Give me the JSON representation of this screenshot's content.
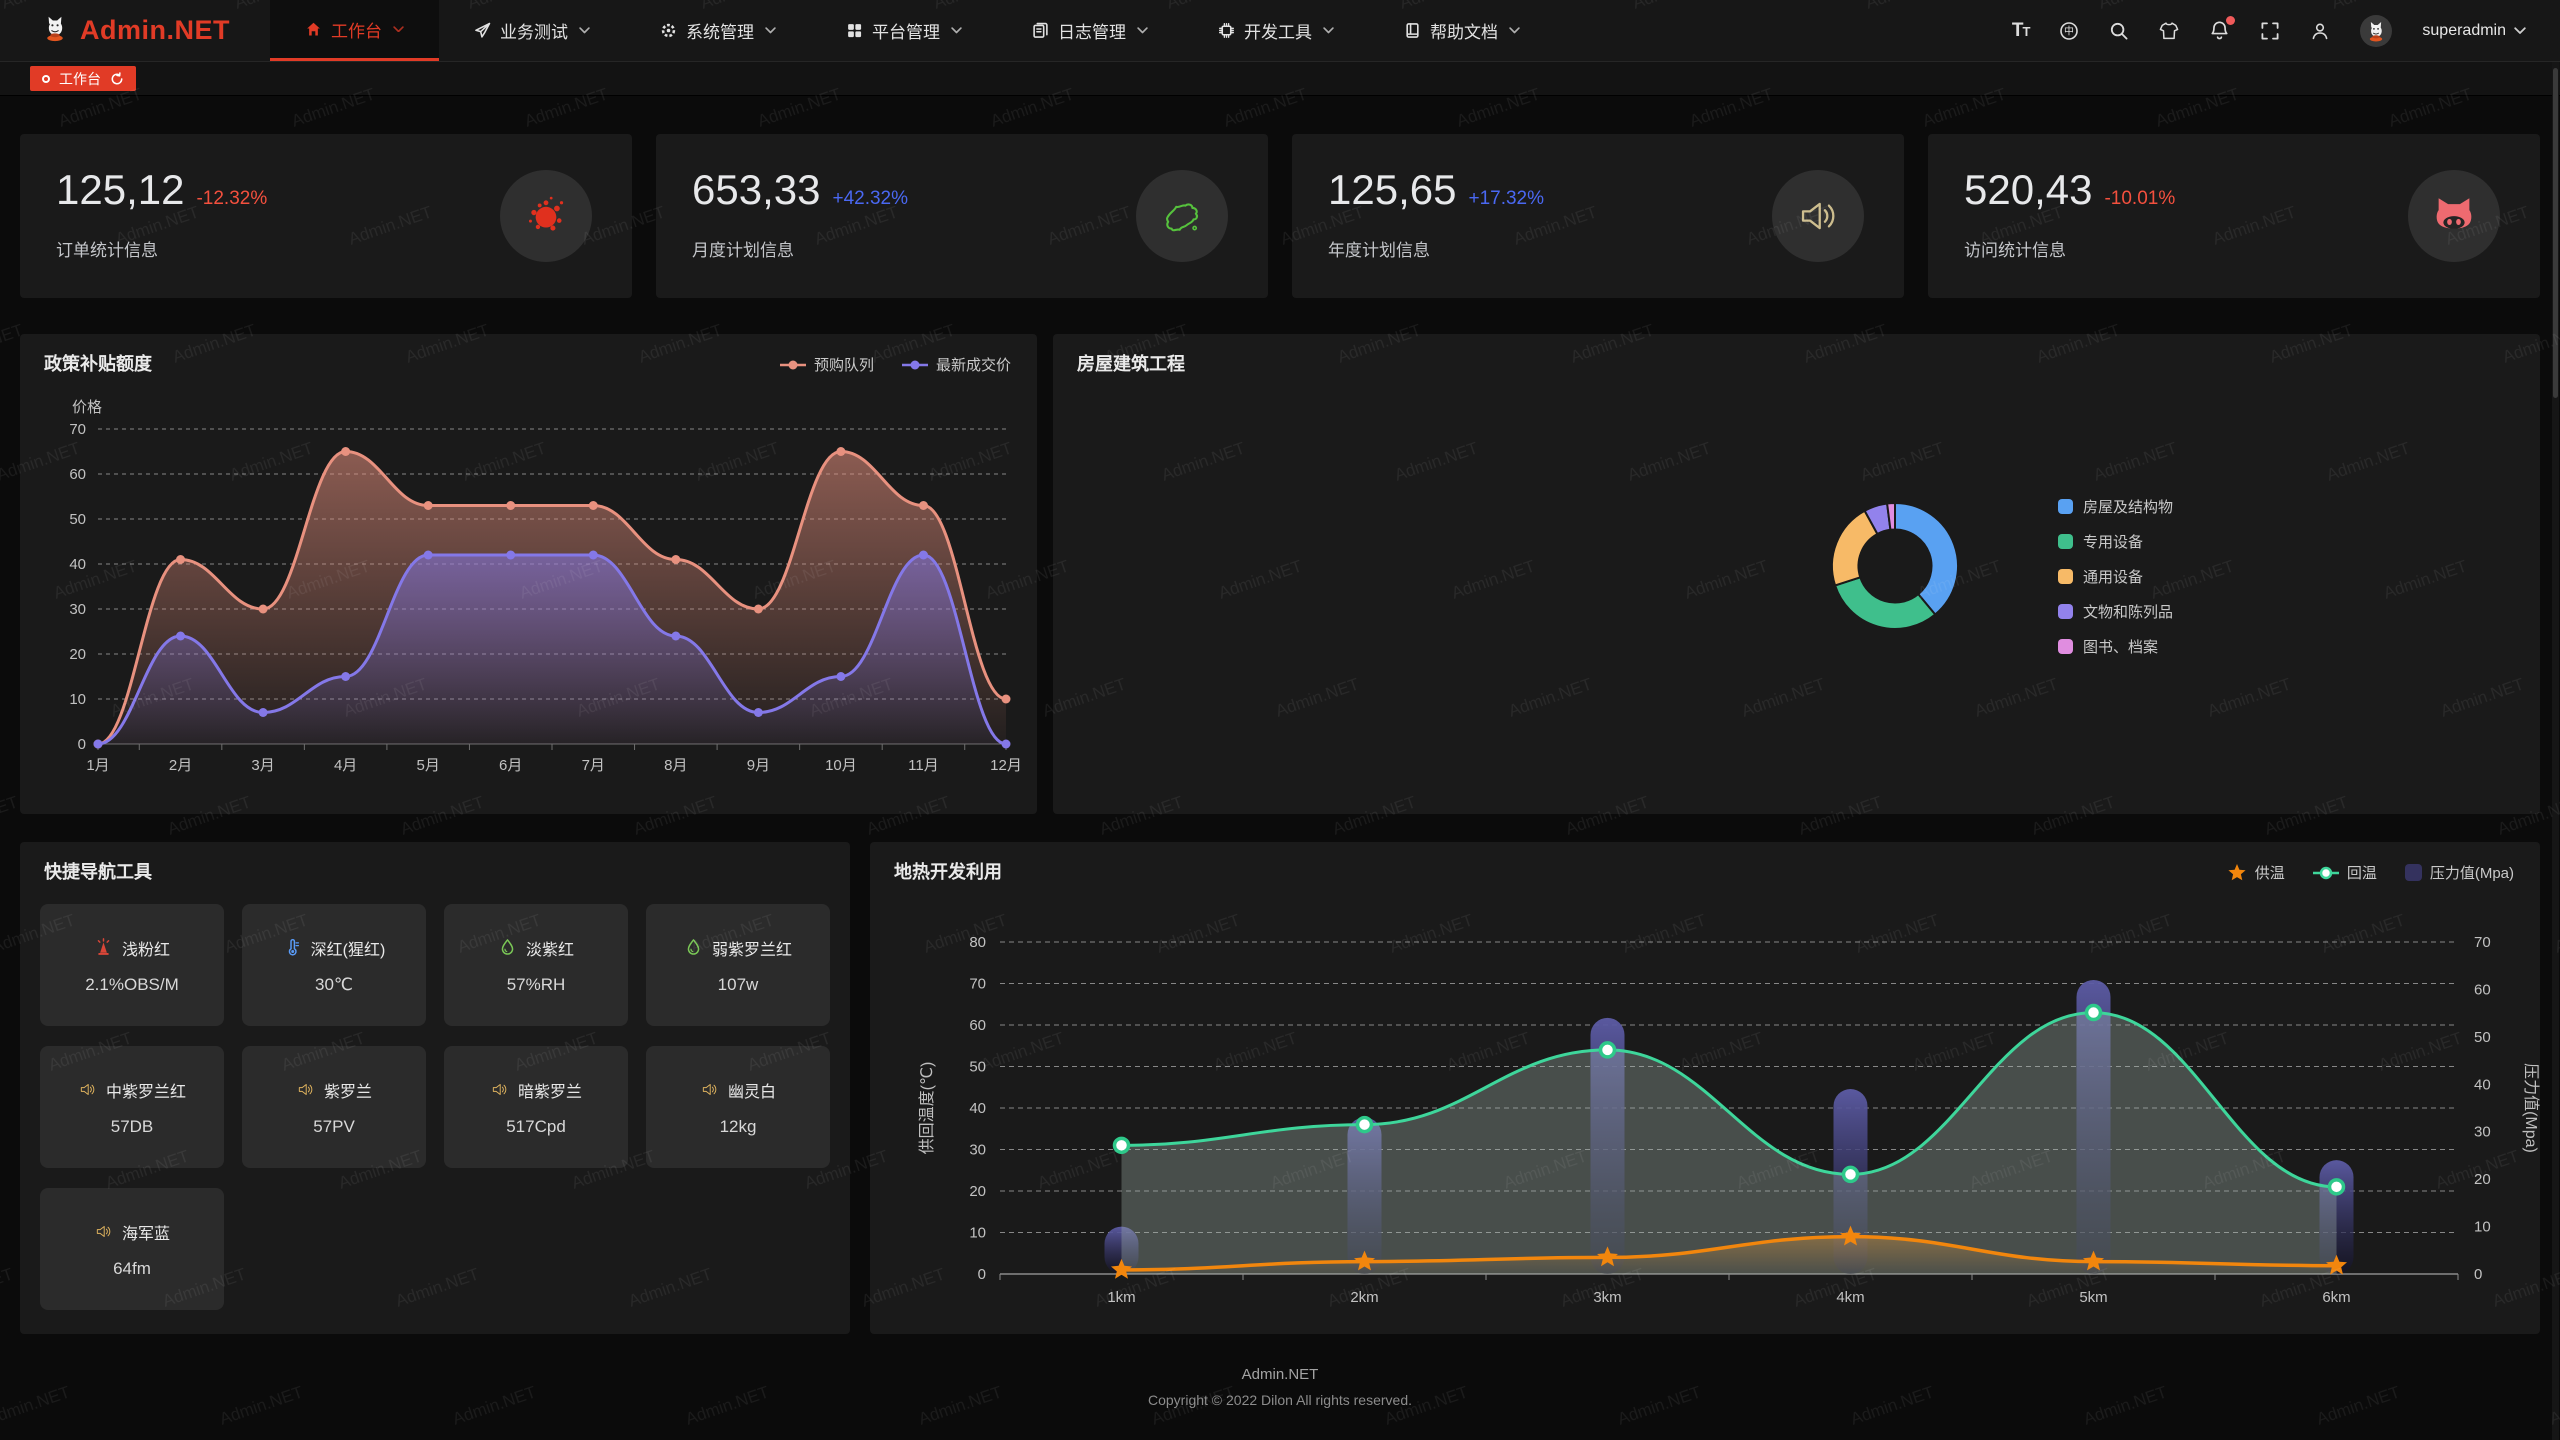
{
  "brand": {
    "name": "Admin.NET",
    "accent": "#e13b26"
  },
  "nav": {
    "items": [
      {
        "label": "工作台",
        "icon": "home-icon",
        "active": true
      },
      {
        "label": "业务测试",
        "icon": "send-icon",
        "active": false
      },
      {
        "label": "系统管理",
        "icon": "gear-icon",
        "active": false
      },
      {
        "label": "平台管理",
        "icon": "grid-icon",
        "active": false
      },
      {
        "label": "日志管理",
        "icon": "log-icon",
        "active": false
      },
      {
        "label": "开发工具",
        "icon": "chip-icon",
        "active": false
      },
      {
        "label": "帮助文档",
        "icon": "book-icon",
        "active": false
      }
    ],
    "right": {
      "icons": [
        "font-size-icon",
        "language-icon",
        "search-icon",
        "theme-icon",
        "notification-bell-icon",
        "fullscreen-icon",
        "profile-icon"
      ],
      "notification_badge": true,
      "user": "superadmin"
    }
  },
  "tabbar": {
    "tabs": [
      {
        "label": "工作台",
        "active": true
      }
    ]
  },
  "stats": [
    {
      "value": "125,12",
      "delta": "-12.32%",
      "direction": "down",
      "label": "订单统计信息",
      "icon": "splatter-icon",
      "icon_color": "#e0301e"
    },
    {
      "value": "653,33",
      "delta": "+42.32%",
      "direction": "up",
      "label": "月度计划信息",
      "icon": "china-map-icon",
      "icon_color": "#56c23d"
    },
    {
      "value": "125,65",
      "delta": "+17.32%",
      "direction": "up",
      "label": "年度计划信息",
      "icon": "speaker-icon",
      "icon_color": "#cdbd8e"
    },
    {
      "value": "520,43",
      "delta": "-10.01%",
      "direction": "down",
      "label": "访问统计信息",
      "icon": "cat-icon",
      "icon_color": "#ee6a70"
    }
  ],
  "chart_data": [
    {
      "type": "area",
      "title": "政策补贴额度",
      "ylabel": "价格",
      "categories": [
        "1月",
        "2月",
        "3月",
        "4月",
        "5月",
        "6月",
        "7月",
        "8月",
        "9月",
        "10月",
        "11月",
        "12月"
      ],
      "ylim": [
        0,
        70
      ],
      "y_step": 10,
      "grid": "dashed",
      "legend_position": "top-right",
      "series": [
        {
          "name": "预购队列",
          "color": "#e8917f",
          "values": [
            0,
            41,
            30,
            65,
            53,
            53,
            53,
            41,
            30,
            65,
            53,
            10
          ]
        },
        {
          "name": "最新成交价",
          "color": "#8478e8",
          "values": [
            0,
            24,
            7,
            15,
            42,
            42,
            42,
            24,
            7,
            15,
            42,
            0
          ]
        }
      ]
    },
    {
      "type": "pie",
      "title": "房屋建筑工程",
      "donut": true,
      "unit": "percent",
      "legend_position": "right",
      "segments": [
        {
          "label": "房屋及结构物",
          "value": 39,
          "color": "#59a1f2"
        },
        {
          "label": "专用设备",
          "value": 31,
          "color": "#3fbf8c"
        },
        {
          "label": "通用设备",
          "value": 22,
          "color": "#f7ba67"
        },
        {
          "label": "文物和陈列品",
          "value": 6,
          "color": "#9282ec"
        },
        {
          "label": "图书、档案",
          "value": 2,
          "color": "#e08de0"
        }
      ]
    },
    {
      "type": "mixed",
      "title": "地热开发利用",
      "categories": [
        "1km",
        "2km",
        "3km",
        "4km",
        "5km",
        "6km"
      ],
      "left_axis": {
        "label": "供回温度(℃)",
        "range": [
          0,
          80
        ],
        "step": 10
      },
      "right_axis": {
        "label": "压力值(Mpa)",
        "range": [
          0,
          70
        ],
        "step": 10
      },
      "series": [
        {
          "name": "供温",
          "type": "line",
          "marker": "star",
          "axis": "left",
          "color": "#f2860d",
          "values": [
            1,
            3,
            4,
            9,
            3,
            2
          ]
        },
        {
          "name": "回温",
          "type": "line",
          "marker": "circle",
          "axis": "left",
          "color": "#3ed69b",
          "values": [
            31,
            36,
            54,
            24,
            63,
            21
          ]
        },
        {
          "name": "压力值(Mpa)",
          "type": "bar",
          "axis": "right",
          "color": "#45437e",
          "values": [
            10,
            33,
            54,
            39,
            62,
            24
          ]
        }
      ]
    }
  ],
  "quick_nav": {
    "title": "快捷导航工具",
    "cards": [
      {
        "icon": "beacon-icon",
        "icon_color": "#d94638",
        "name": "浅粉红",
        "value": "2.1%OBS/M"
      },
      {
        "icon": "thermometer-icon",
        "icon_color": "#5a9cf8",
        "name": "深红(猩红)",
        "value": "30℃"
      },
      {
        "icon": "drop-icon",
        "icon_color": "#7ac756",
        "name": "淡紫红",
        "value": "57%RH"
      },
      {
        "icon": "drop-icon",
        "icon_color": "#7ac756",
        "name": "弱紫罗兰红",
        "value": "107w"
      },
      {
        "icon": "speaker-icon",
        "icon_color": "#e2b55f",
        "name": "中紫罗兰红",
        "value": "57DB"
      },
      {
        "icon": "speaker-icon",
        "icon_color": "#e2b55f",
        "name": "紫罗兰",
        "value": "57PV"
      },
      {
        "icon": "speaker-icon",
        "icon_color": "#e2b55f",
        "name": "暗紫罗兰",
        "value": "517Cpd"
      },
      {
        "icon": "speaker-icon",
        "icon_color": "#e2b55f",
        "name": "幽灵白",
        "value": "12kg"
      },
      {
        "icon": "speaker-icon",
        "icon_color": "#e2b55f",
        "name": "海军蓝",
        "value": "64fm"
      }
    ]
  },
  "footer": {
    "line1": "Admin.NET",
    "line2": "Copyright © 2022 Dilon All rights reserved."
  },
  "watermark": {
    "text": "Admin.NET"
  }
}
